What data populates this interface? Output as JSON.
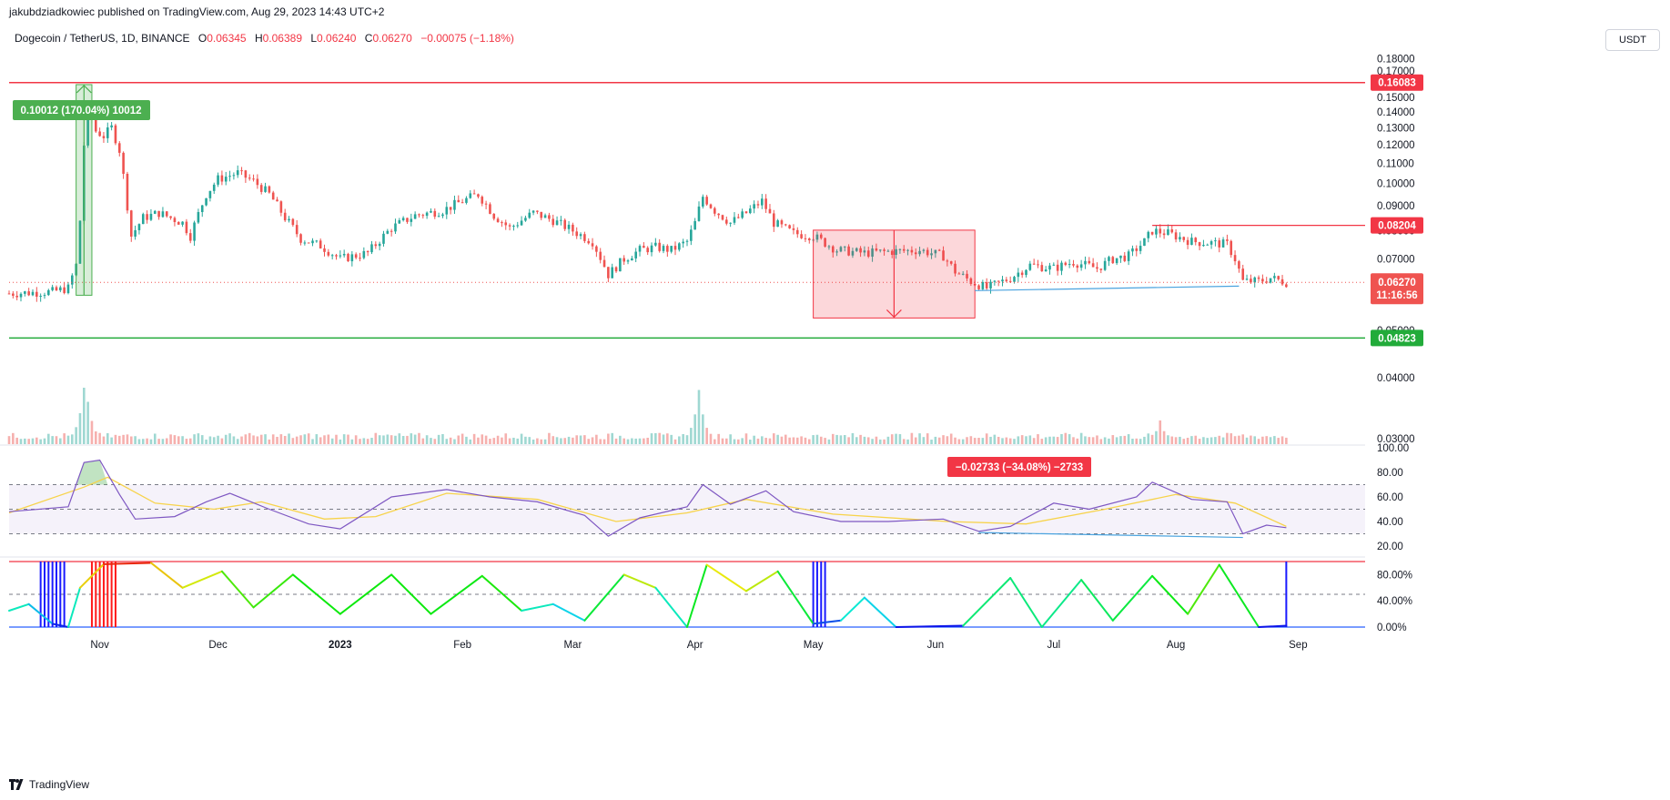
{
  "header": {
    "publisher": "jakubdziadkowiec published on TradingView.com, Aug 29, 2023 14:43 UTC+2",
    "symbol": "Dogecoin / TetherUS, 1D, BINANCE",
    "o_label": "O",
    "o_value": "0.06345",
    "h_label": "H",
    "h_value": "0.06389",
    "l_label": "L",
    "l_value": "0.06240",
    "c_label": "C",
    "c_value": "0.06270",
    "change": "−0.00075 (−1.18%)",
    "currency": "USDT"
  },
  "footer": {
    "brand": "TradingView",
    "logo_icon": "tradingview-logo-icon"
  },
  "colors": {
    "up": "#26a69a",
    "down": "#ef5350",
    "resistance": "#f23645",
    "support": "#22ab3a",
    "rsi": "#7e57c2",
    "rsi_ma": "#f7d34a",
    "trendline": "#4aa3df"
  },
  "chart_data": [
    {
      "type": "candlestick",
      "title": "",
      "y_axis": {
        "scale": "log",
        "ticks": [
          "0.18000",
          "0.17000",
          "0.16000",
          "0.15000",
          "0.14000",
          "0.13000",
          "0.12000",
          "0.11000",
          "0.10000",
          "0.09000",
          "0.08000",
          "0.07000",
          "0.06000",
          "0.05000",
          "0.04000",
          "0.03000"
        ]
      },
      "x_axis": {
        "ticks": [
          "Nov",
          "Dec",
          "2023",
          "Feb",
          "Mar",
          "Apr",
          "May",
          "Jun",
          "Jul",
          "Aug",
          "Sep"
        ]
      },
      "close_path": [
        [
          "2022-10-09",
          0.0595
        ],
        [
          "2022-10-20",
          0.06
        ],
        [
          "2022-10-24",
          0.061
        ],
        [
          "2022-10-26",
          0.068
        ],
        [
          "2022-10-27",
          0.084
        ],
        [
          "2022-10-28",
          0.12
        ],
        [
          "2022-10-29",
          0.143
        ],
        [
          "2022-10-31",
          0.128
        ],
        [
          "2022-11-02",
          0.125
        ],
        [
          "2022-11-04",
          0.13
        ],
        [
          "2022-11-06",
          0.117
        ],
        [
          "2022-11-08",
          0.09
        ],
        [
          "2022-11-09",
          0.078
        ],
        [
          "2022-11-12",
          0.085
        ],
        [
          "2022-11-16",
          0.087
        ],
        [
          "2022-11-22",
          0.083
        ],
        [
          "2022-11-24",
          0.078
        ],
        [
          "2022-11-28",
          0.095
        ],
        [
          "2022-12-01",
          0.102
        ],
        [
          "2022-12-06",
          0.105
        ],
        [
          "2022-12-10",
          0.101
        ],
        [
          "2022-12-14",
          0.095
        ],
        [
          "2022-12-18",
          0.085
        ],
        [
          "2022-12-22",
          0.077
        ],
        [
          "2022-12-27",
          0.0745
        ],
        [
          "2023-01-01",
          0.07
        ],
        [
          "2023-01-08",
          0.072
        ],
        [
          "2023-01-14",
          0.081
        ],
        [
          "2023-01-20",
          0.086
        ],
        [
          "2023-01-27",
          0.088
        ],
        [
          "2023-02-01",
          0.092
        ],
        [
          "2023-02-05",
          0.095
        ],
        [
          "2023-02-09",
          0.086
        ],
        [
          "2023-02-13",
          0.081
        ],
        [
          "2023-02-19",
          0.087
        ],
        [
          "2023-02-24",
          0.084
        ],
        [
          "2023-03-01",
          0.08
        ],
        [
          "2023-03-06",
          0.076
        ],
        [
          "2023-03-10",
          0.065
        ],
        [
          "2023-03-14",
          0.07
        ],
        [
          "2023-03-18",
          0.073
        ],
        [
          "2023-03-22",
          0.074
        ],
        [
          "2023-03-26",
          0.073
        ],
        [
          "2023-03-30",
          0.076
        ],
        [
          "2023-04-01",
          0.083
        ],
        [
          "2023-04-03",
          0.094
        ],
        [
          "2023-04-06",
          0.088
        ],
        [
          "2023-04-10",
          0.083
        ],
        [
          "2023-04-14",
          0.087
        ],
        [
          "2023-04-18",
          0.092
        ],
        [
          "2023-04-21",
          0.083
        ],
        [
          "2023-04-26",
          0.079
        ],
        [
          "2023-05-01",
          0.078
        ],
        [
          "2023-05-07",
          0.073
        ],
        [
          "2023-05-14",
          0.072
        ],
        [
          "2023-05-20",
          0.0725
        ],
        [
          "2023-05-28",
          0.073
        ],
        [
          "2023-06-03",
          0.071
        ],
        [
          "2023-06-06",
          0.066
        ],
        [
          "2023-06-10",
          0.063
        ],
        [
          "2023-06-14",
          0.061
        ],
        [
          "2023-06-20",
          0.064
        ],
        [
          "2023-06-25",
          0.068
        ],
        [
          "2023-07-01",
          0.067
        ],
        [
          "2023-07-06",
          0.069
        ],
        [
          "2023-07-12",
          0.067
        ],
        [
          "2023-07-16",
          0.07
        ],
        [
          "2023-07-20",
          0.071
        ],
        [
          "2023-07-24",
          0.076
        ],
        [
          "2023-07-26",
          0.08
        ],
        [
          "2023-07-30",
          0.079
        ],
        [
          "2023-08-05",
          0.076
        ],
        [
          "2023-08-10",
          0.0755
        ],
        [
          "2023-08-14",
          0.075
        ],
        [
          "2023-08-16",
          0.07
        ],
        [
          "2023-08-18",
          0.063
        ],
        [
          "2023-08-22",
          0.063
        ],
        [
          "2023-08-25",
          0.064
        ],
        [
          "2023-08-29",
          0.0627
        ]
      ],
      "key_levels": [
        {
          "name": "resistance",
          "value": 0.16083,
          "label": "0.16083"
        },
        {
          "name": "support",
          "value": 0.04823,
          "label": "0.04823"
        },
        {
          "name": "local-high",
          "value": 0.08204,
          "label": "0.08204"
        }
      ],
      "last_price": {
        "label": "0.06270",
        "countdown": "11:16:56"
      },
      "measurements": [
        {
          "name": "rally",
          "text": "0.10012 (170.04%) 10012",
          "from_date": "2022-10-26",
          "to_date": "2022-10-30",
          "low": 0.059,
          "high": 0.1593
        },
        {
          "name": "decline",
          "text": "−0.02733 (−34.08%) −2733",
          "from_date": "2023-05-01",
          "to_date": "2023-06-11",
          "low": 0.053,
          "high": 0.0802
        }
      ],
      "trendline": [
        [
          "2023-06-11",
          0.0603
        ],
        [
          "2023-08-17",
          0.0616
        ]
      ]
    },
    {
      "type": "bar",
      "name": "volume",
      "values_note": "relative volume bars colored by candle direction",
      "spikes": [
        [
          "2022-10-28",
          1.0
        ],
        [
          "2022-10-29",
          0.75
        ],
        [
          "2023-04-02",
          0.96
        ],
        [
          "2023-07-28",
          0.42
        ]
      ]
    },
    {
      "type": "line",
      "name": "RSI",
      "y_axis": {
        "ticks": [
          "100.00",
          "80.00",
          "60.00",
          "40.00",
          "20.00"
        ]
      },
      "bands": [
        70,
        50,
        30
      ],
      "series": [
        {
          "points": [
            [
              "2022-10-09",
              48
            ],
            [
              "2022-10-24",
              52
            ],
            [
              "2022-10-28",
              88
            ],
            [
              "2022-11-01",
              90
            ],
            [
              "2022-11-06",
              62
            ],
            [
              "2022-11-10",
              42
            ],
            [
              "2022-11-20",
              44
            ],
            [
              "2022-11-28",
              56
            ],
            [
              "2022-12-04",
              63
            ],
            [
              "2022-12-14",
              50
            ],
            [
              "2022-12-24",
              38
            ],
            [
              "2023-01-01",
              34
            ],
            [
              "2023-01-14",
              60
            ],
            [
              "2023-01-28",
              66
            ],
            [
              "2023-02-08",
              60
            ],
            [
              "2023-02-20",
              56
            ],
            [
              "2023-03-04",
              45
            ],
            [
              "2023-03-10",
              28
            ],
            [
              "2023-03-18",
              43
            ],
            [
              "2023-03-30",
              52
            ],
            [
              "2023-04-03",
              70
            ],
            [
              "2023-04-10",
              54
            ],
            [
              "2023-04-19",
              65
            ],
            [
              "2023-04-26",
              48
            ],
            [
              "2023-05-08",
              40
            ],
            [
              "2023-05-20",
              40
            ],
            [
              "2023-06-03",
              42
            ],
            [
              "2023-06-12",
              32
            ],
            [
              "2023-06-20",
              36
            ],
            [
              "2023-07-01",
              55
            ],
            [
              "2023-07-10",
              50
            ],
            [
              "2023-07-22",
              60
            ],
            [
              "2023-07-26",
              72
            ],
            [
              "2023-08-05",
              58
            ],
            [
              "2023-08-14",
              56
            ],
            [
              "2023-08-18",
              30
            ],
            [
              "2023-08-24",
              37
            ],
            [
              "2023-08-29",
              35
            ]
          ]
        },
        {
          "name": "RSI MA",
          "points": [
            [
              "2022-10-09",
              47
            ],
            [
              "2022-10-28",
              68
            ],
            [
              "2022-11-03",
              76
            ],
            [
              "2022-11-15",
              55
            ],
            [
              "2022-11-30",
              50
            ],
            [
              "2022-12-12",
              56
            ],
            [
              "2022-12-28",
              42
            ],
            [
              "2023-01-10",
              44
            ],
            [
              "2023-01-28",
              63
            ],
            [
              "2023-02-20",
              58
            ],
            [
              "2023-03-12",
              40
            ],
            [
              "2023-03-30",
              47
            ],
            [
              "2023-04-14",
              58
            ],
            [
              "2023-05-06",
              46
            ],
            [
              "2023-06-04",
              40
            ],
            [
              "2023-06-24",
              38
            ],
            [
              "2023-07-14",
              50
            ],
            [
              "2023-08-01",
              62
            ],
            [
              "2023-08-16",
              55
            ],
            [
              "2023-08-29",
              36
            ]
          ]
        }
      ]
    },
    {
      "type": "line",
      "name": "oscillator",
      "y_axis": {
        "ticks": [
          "80.00%",
          "40.00%",
          "0.00%"
        ]
      },
      "bands": [
        100,
        50,
        0
      ],
      "series": [
        {
          "points": [
            [
              "2022-10-09",
              25
            ],
            [
              "2022-10-14",
              35
            ],
            [
              "2022-10-20",
              5
            ],
            [
              "2022-10-24",
              0
            ],
            [
              "2022-10-27",
              60
            ],
            [
              "2022-11-02",
              96
            ],
            [
              "2022-11-14",
              98
            ],
            [
              "2022-11-22",
              60
            ],
            [
              "2022-12-02",
              85
            ],
            [
              "2022-12-10",
              30
            ],
            [
              "2022-12-20",
              80
            ],
            [
              "2023-01-01",
              20
            ],
            [
              "2023-01-14",
              80
            ],
            [
              "2023-01-24",
              20
            ],
            [
              "2023-02-06",
              78
            ],
            [
              "2023-02-16",
              25
            ],
            [
              "2023-02-24",
              35
            ],
            [
              "2023-03-04",
              10
            ],
            [
              "2023-03-14",
              80
            ],
            [
              "2023-03-22",
              60
            ],
            [
              "2023-03-30",
              0
            ],
            [
              "2023-04-04",
              95
            ],
            [
              "2023-04-14",
              55
            ],
            [
              "2023-04-22",
              85
            ],
            [
              "2023-05-01",
              5
            ],
            [
              "2023-05-08",
              10
            ],
            [
              "2023-05-14",
              45
            ],
            [
              "2023-05-22",
              0
            ],
            [
              "2023-06-08",
              2
            ],
            [
              "2023-06-20",
              75
            ],
            [
              "2023-06-28",
              0
            ],
            [
              "2023-07-08",
              72
            ],
            [
              "2023-07-16",
              10
            ],
            [
              "2023-07-26",
              78
            ],
            [
              "2023-08-04",
              20
            ],
            [
              "2023-08-12",
              95
            ],
            [
              "2023-08-22",
              0
            ],
            [
              "2023-08-29",
              2
            ]
          ]
        }
      ]
    }
  ]
}
